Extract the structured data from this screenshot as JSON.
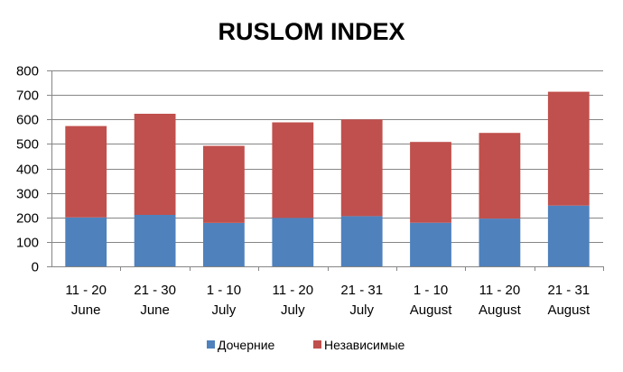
{
  "chart_data": {
    "type": "bar",
    "stacked": true,
    "title": "RUSLOM INDEX",
    "xlabel": "",
    "ylabel": "",
    "ylim": [
      0,
      800
    ],
    "yticks": [
      0,
      100,
      200,
      300,
      400,
      500,
      600,
      700,
      800
    ],
    "grid": true,
    "legend_position": "bottom",
    "categories": [
      [
        "11 - 20",
        "June"
      ],
      [
        "21 - 30",
        "June"
      ],
      [
        "1 - 10",
        "July"
      ],
      [
        "11 - 20",
        "July"
      ],
      [
        "21 - 31",
        "July"
      ],
      [
        "1 - 10",
        "August"
      ],
      [
        "11 - 20",
        "August"
      ],
      [
        "21 - 31",
        "August"
      ]
    ],
    "series": [
      {
        "name": "Дочерние",
        "color": "#4f81bd",
        "values": [
          200,
          210,
          177,
          198,
          205,
          178,
          195,
          248
        ]
      },
      {
        "name": "Независимые",
        "color": "#c0504d",
        "values": [
          373,
          413,
          315,
          390,
          395,
          330,
          350,
          465
        ]
      }
    ]
  }
}
